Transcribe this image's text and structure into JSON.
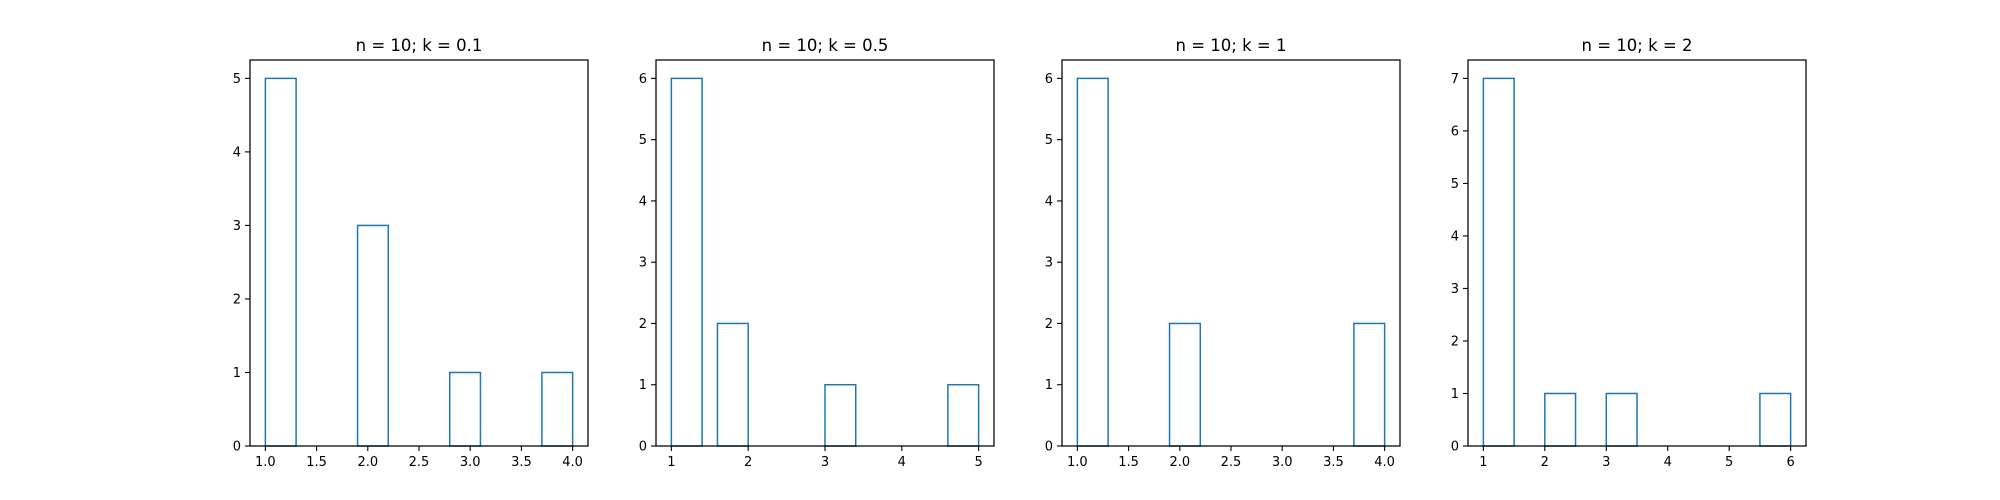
{
  "chart_data": [
    {
      "type": "bar",
      "title": "n = 10; k = 0.1",
      "xlim": [
        0.85,
        4.15
      ],
      "ylim": [
        0,
        5.25
      ],
      "xticks": [
        1.0,
        1.5,
        2.0,
        2.5,
        3.0,
        3.5,
        4.0
      ],
      "xtick_labels": [
        "1.0",
        "1.5",
        "2.0",
        "2.5",
        "3.0",
        "3.5",
        "4.0"
      ],
      "yticks": [
        0,
        1,
        2,
        3,
        4,
        5
      ],
      "ytick_labels": [
        "0",
        "1",
        "2",
        "3",
        "4",
        "5"
      ],
      "bars": [
        {
          "x0": 1.0,
          "x1": 1.3,
          "value": 5
        },
        {
          "x0": 1.9,
          "x1": 2.2,
          "value": 3
        },
        {
          "x0": 2.8,
          "x1": 3.1,
          "value": 1
        },
        {
          "x0": 3.7,
          "x1": 4.0,
          "value": 1
        }
      ]
    },
    {
      "type": "bar",
      "title": "n = 10; k = 0.5",
      "xlim": [
        0.8,
        5.2
      ],
      "ylim": [
        0,
        6.3
      ],
      "xticks": [
        1,
        2,
        3,
        4,
        5
      ],
      "xtick_labels": [
        "1",
        "2",
        "3",
        "4",
        "5"
      ],
      "yticks": [
        0,
        1,
        2,
        3,
        4,
        5,
        6
      ],
      "ytick_labels": [
        "0",
        "1",
        "2",
        "3",
        "4",
        "5",
        "6"
      ],
      "bars": [
        {
          "x0": 1.0,
          "x1": 1.4,
          "value": 6
        },
        {
          "x0": 1.6,
          "x1": 2.0,
          "value": 2
        },
        {
          "x0": 2.2,
          "x1": 2.6,
          "value": 0
        },
        {
          "x0": 3.0,
          "x1": 3.4,
          "value": 1
        },
        {
          "x0": 4.6,
          "x1": 5.0,
          "value": 1
        }
      ]
    },
    {
      "type": "bar",
      "title": "n = 10; k = 1",
      "xlim": [
        0.85,
        4.15
      ],
      "ylim": [
        0,
        6.3
      ],
      "xticks": [
        1.0,
        1.5,
        2.0,
        2.5,
        3.0,
        3.5,
        4.0
      ],
      "xtick_labels": [
        "1.0",
        "1.5",
        "2.0",
        "2.5",
        "3.0",
        "3.5",
        "4.0"
      ],
      "yticks": [
        0,
        1,
        2,
        3,
        4,
        5,
        6
      ],
      "ytick_labels": [
        "0",
        "1",
        "2",
        "3",
        "4",
        "5",
        "6"
      ],
      "bars": [
        {
          "x0": 1.0,
          "x1": 1.3,
          "value": 6
        },
        {
          "x0": 1.9,
          "x1": 2.2,
          "value": 2
        },
        {
          "x0": 3.7,
          "x1": 4.0,
          "value": 2
        }
      ]
    },
    {
      "type": "bar",
      "title": "n = 10; k = 2",
      "xlim": [
        0.75,
        6.25
      ],
      "ylim": [
        0,
        7.35
      ],
      "xticks": [
        1,
        2,
        3,
        4,
        5,
        6
      ],
      "xtick_labels": [
        "1",
        "2",
        "3",
        "4",
        "5",
        "6"
      ],
      "yticks": [
        0,
        1,
        2,
        3,
        4,
        5,
        6,
        7
      ],
      "ytick_labels": [
        "0",
        "1",
        "2",
        "3",
        "4",
        "5",
        "6",
        "7"
      ],
      "bars": [
        {
          "x0": 1.0,
          "x1": 1.5,
          "value": 7
        },
        {
          "x0": 2.0,
          "x1": 2.5,
          "value": 1
        },
        {
          "x0": 3.0,
          "x1": 3.5,
          "value": 1
        },
        {
          "x0": 5.5,
          "x1": 6.0,
          "value": 1
        }
      ]
    }
  ]
}
